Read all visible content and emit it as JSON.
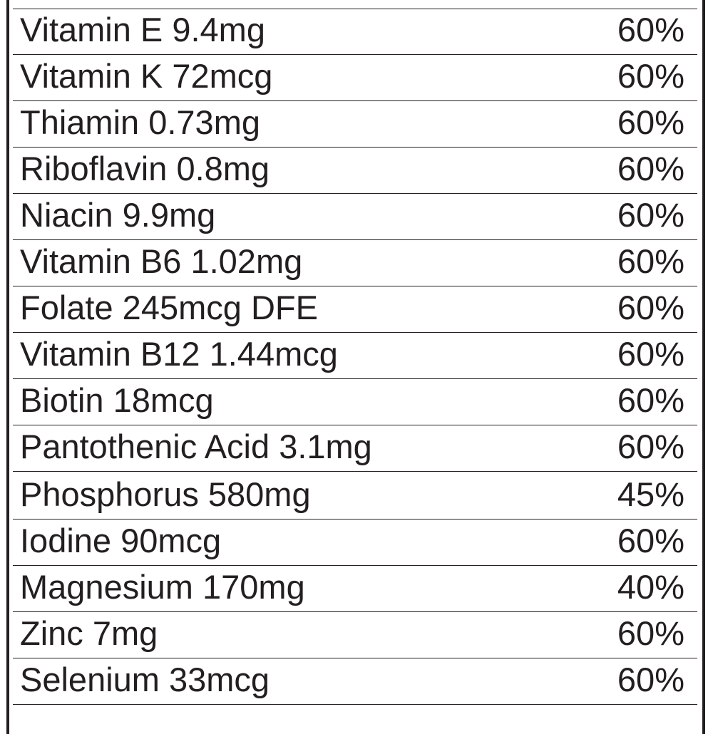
{
  "nutrients": [
    {
      "name": "Vitamin E 9.4mg",
      "dv": "60%"
    },
    {
      "name": "Vitamin K 72mcg",
      "dv": "60%"
    },
    {
      "name": "Thiamin 0.73mg",
      "dv": "60%"
    },
    {
      "name": "Riboflavin 0.8mg",
      "dv": "60%"
    },
    {
      "name": "Niacin 9.9mg",
      "dv": "60%"
    },
    {
      "name": "Vitamin B6 1.02mg",
      "dv": "60%"
    },
    {
      "name": "Folate 245mcg DFE",
      "dv": "60%"
    },
    {
      "name": "Vitamin B12 1.44mcg",
      "dv": "60%"
    },
    {
      "name": "Biotin 18mcg",
      "dv": "60%"
    },
    {
      "name": "Pantothenic Acid 3.1mg",
      "dv": "60%"
    },
    {
      "name": "Phosphorus 580mg",
      "dv": "45%"
    },
    {
      "name": "Iodine 90mcg",
      "dv": "60%"
    },
    {
      "name": "Magnesium 170mg",
      "dv": "40%"
    },
    {
      "name": "Zinc 7mg",
      "dv": "60%"
    },
    {
      "name": "Selenium 33mcg",
      "dv": "60%"
    }
  ]
}
